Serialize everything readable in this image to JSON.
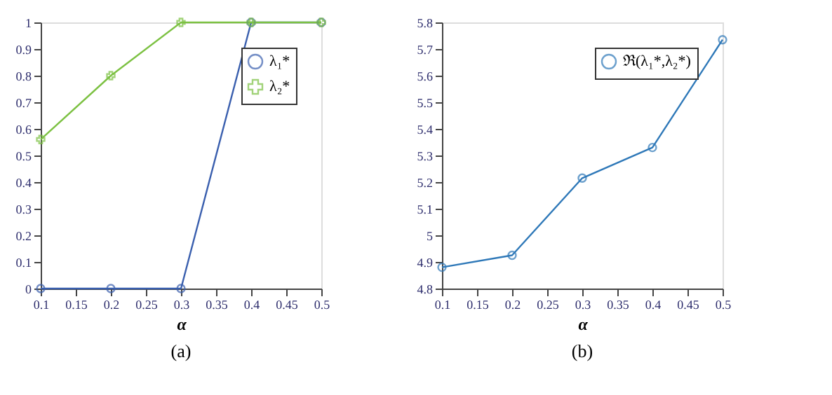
{
  "chart_data": [
    {
      "type": "line",
      "x": [
        0.1,
        0.2,
        0.3,
        0.4,
        0.5
      ],
      "series": [
        {
          "name": "λ₁*",
          "color": "#3a5fae",
          "marker": "circle",
          "values": [
            0,
            0,
            0,
            1,
            1
          ]
        },
        {
          "name": "λ₂*",
          "color": "#7cc142",
          "marker": "cross",
          "values": [
            0.56,
            0.8,
            1,
            1,
            1
          ]
        }
      ],
      "xlim": [
        0.1,
        0.5
      ],
      "xticks": [
        0.1,
        0.15,
        0.2,
        0.25,
        0.3,
        0.35,
        0.4,
        0.45,
        0.5
      ],
      "ylim": [
        0,
        1
      ],
      "yticks": [
        0,
        0.1,
        0.2,
        0.3,
        0.4,
        0.5,
        0.6,
        0.7,
        0.8,
        0.9,
        1
      ],
      "xlabel": "α",
      "legend": "top right",
      "grid": false,
      "annotations": [
        "(a)"
      ]
    },
    {
      "type": "line",
      "x": [
        0.1,
        0.2,
        0.3,
        0.4,
        0.5
      ],
      "series": [
        {
          "name": "ℜ(λ₁*,λ₂*)",
          "color": "#2e78b8",
          "marker": "circle",
          "values": [
            4.88,
            4.925,
            5.215,
            5.33,
            5.735
          ]
        }
      ],
      "xlim": [
        0.1,
        0.5
      ],
      "xticks": [
        0.1,
        0.15,
        0.2,
        0.25,
        0.3,
        0.35,
        0.4,
        0.45,
        0.5
      ],
      "ylim": [
        4.8,
        5.8
      ],
      "yticks": [
        4.8,
        4.9,
        5,
        5.1,
        5.2,
        5.3,
        5.4,
        5.5,
        5.6,
        5.7,
        5.8
      ],
      "xlabel": "α",
      "legend": "top right",
      "grid": false,
      "annotations": [
        "(b)"
      ]
    }
  ]
}
